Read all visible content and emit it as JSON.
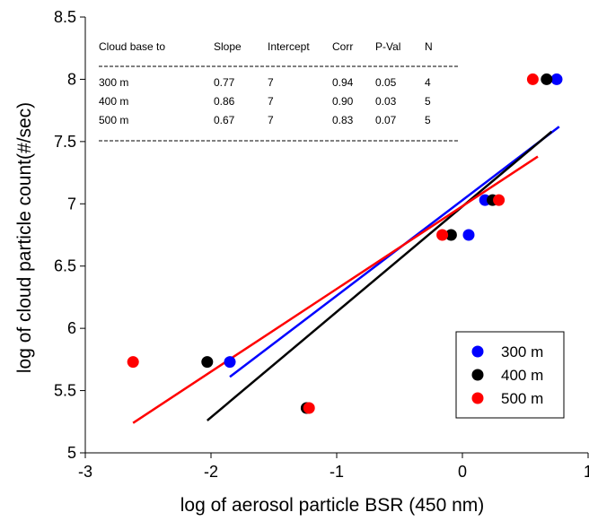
{
  "chart_data": {
    "type": "scatter",
    "xlabel": "log of aerosol particle BSR (450 nm)",
    "ylabel": "log of cloud particle count(#/sec)",
    "xlim": [
      -3,
      1
    ],
    "ylim": [
      5,
      8.5
    ],
    "x_ticks": [
      -3,
      -2,
      -1,
      0,
      1
    ],
    "y_ticks": [
      5,
      5.5,
      6,
      6.5,
      7,
      7.5,
      8,
      8.5
    ],
    "x_tick_labels": [
      "-3",
      "-2",
      "-1",
      "0",
      "1"
    ],
    "y_tick_labels": [
      "5",
      "5.5",
      "6",
      "6.5",
      "7",
      "7.5",
      "8",
      "8.5"
    ],
    "grid": false,
    "legend_position": "bottom-right",
    "series": [
      {
        "name": "300 m",
        "color": "#0000ff",
        "points": [
          [
            -1.85,
            5.73
          ],
          [
            0.05,
            6.75
          ],
          [
            0.18,
            7.03
          ],
          [
            0.75,
            8.0
          ]
        ],
        "fit_line": [
          [
            -1.85,
            5.61
          ],
          [
            0.77,
            7.62
          ]
        ]
      },
      {
        "name": "400 m",
        "color": "#000000",
        "points": [
          [
            -2.03,
            5.73
          ],
          [
            -1.24,
            5.36
          ],
          [
            -0.09,
            6.75
          ],
          [
            0.24,
            7.03
          ],
          [
            0.67,
            8.0
          ]
        ],
        "fit_line": [
          [
            -2.03,
            5.26
          ],
          [
            0.71,
            7.58
          ]
        ]
      },
      {
        "name": "500 m",
        "color": "#ff0000",
        "points": [
          [
            -2.62,
            5.73
          ],
          [
            -1.22,
            5.36
          ],
          [
            -0.16,
            6.75
          ],
          [
            0.29,
            7.03
          ],
          [
            0.56,
            8.0
          ]
        ],
        "fit_line": [
          [
            -2.62,
            5.24
          ],
          [
            0.6,
            7.38
          ]
        ]
      }
    ],
    "table": {
      "headers": [
        "Cloud base to",
        "Slope",
        "Intercept",
        "Corr",
        "P-Val",
        "N"
      ],
      "rows": [
        [
          "300 m",
          "0.77",
          "7",
          "0.94",
          "0.05",
          "4"
        ],
        [
          "400 m",
          "0.86",
          "7",
          "0.90",
          "0.03",
          "5"
        ],
        [
          "500 m",
          "0.67",
          "7",
          "0.83",
          "0.07",
          "5"
        ]
      ]
    }
  }
}
